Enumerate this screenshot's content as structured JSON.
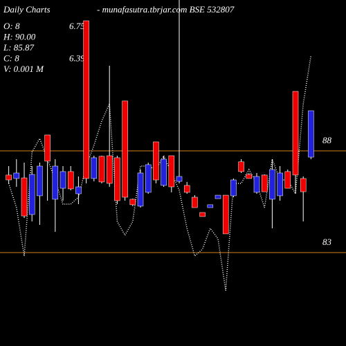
{
  "chart_data": {
    "type": "candlestick",
    "title": "Daily Charts",
    "subtitle": "- munafasutra.tbrjar.com  BSE 532807",
    "info": [
      {
        "label": "O: 8",
        "extra": "6.75"
      },
      {
        "label": "H: 90.00"
      },
      {
        "label": "L: 85.87"
      },
      {
        "label": "C: 8",
        "extra": "6.39"
      },
      {
        "label": "V: 0.001 M"
      }
    ],
    "ylim": [
      78.41,
      95.41
    ],
    "yticks": [
      88,
      83
    ],
    "grid_color": "#d97f1a",
    "up_color": "#2222dd",
    "down_color": "#ee0000",
    "line_color": "#ffffff",
    "open": [
      86.81,
      86.64,
      86.67,
      84.87,
      85.79,
      88.78,
      85.62,
      86.16,
      86.98,
      85.89,
      94.39,
      86.64,
      87.73,
      87.76,
      87.66,
      90.45,
      85.62,
      85.28,
      85.96,
      88.44,
      86.3,
      87.76,
      86.5,
      86.3,
      85.72,
      84.97,
      85.21,
      85.65,
      85.82,
      85.79,
      87.46,
      86.84,
      85.96,
      86.81,
      85.62,
      85.79,
      86.98,
      90.92,
      86.64,
      87.69
    ],
    "high": [
      87.25,
      87.59,
      87.42,
      87.25,
      87.42,
      88.78,
      87.59,
      87.25,
      87.25,
      86.74,
      94.39,
      87.76,
      87.76,
      92.18,
      87.76,
      90.45,
      85.65,
      87.08,
      87.42,
      88.44,
      87.76,
      87.76,
      95.41,
      86.47,
      85.82,
      84.97,
      85.35,
      85.82,
      85.82,
      86.64,
      87.59,
      86.91,
      86.91,
      86.84,
      87.59,
      87.25,
      87.08,
      90.92,
      86.74,
      89.97
    ],
    "low": [
      86.4,
      86.23,
      84.7,
      84.53,
      84.36,
      85.55,
      84.02,
      85.55,
      86.06,
      85.38,
      86.4,
      86.5,
      86.4,
      86.23,
      85.38,
      85.55,
      85.28,
      85.21,
      85.89,
      86.4,
      86.23,
      85.96,
      86.4,
      85.89,
      85.21,
      84.77,
      85.21,
      85.65,
      83.92,
      85.72,
      86.91,
      86.64,
      85.89,
      85.99,
      84.19,
      85.55,
      86.16,
      85.89,
      84.53,
      87.59
    ],
    "close": [
      86.57,
      86.91,
      84.8,
      86.84,
      87.25,
      87.49,
      87.25,
      86.98,
      86.13,
      86.23,
      86.64,
      87.66,
      86.47,
      86.4,
      85.55,
      85.72,
      85.35,
      86.91,
      87.32,
      86.57,
      87.59,
      86.23,
      86.74,
      85.96,
      85.21,
      84.77,
      85.35,
      85.82,
      83.92,
      86.57,
      86.98,
      86.64,
      86.74,
      85.99,
      87.08,
      86.91,
      86.16,
      86.81,
      85.99,
      89.97
    ],
    "line": [
      86.4,
      85.21,
      82.83,
      87.93,
      88.61,
      87.59,
      86.57,
      85.38,
      85.38,
      85.72,
      87.25,
      88.27,
      89.46,
      90.31,
      84.53,
      83.85,
      84.53,
      87.25,
      87.25,
      87.08,
      87.76,
      86.91,
      86.06,
      84.19,
      82.83,
      83.17,
      84.19,
      83.68,
      81.13,
      86.4,
      86.4,
      87.08,
      86.4,
      85.21,
      87.59,
      86.57,
      86.57,
      85.89,
      90.31,
      92.69
    ]
  }
}
